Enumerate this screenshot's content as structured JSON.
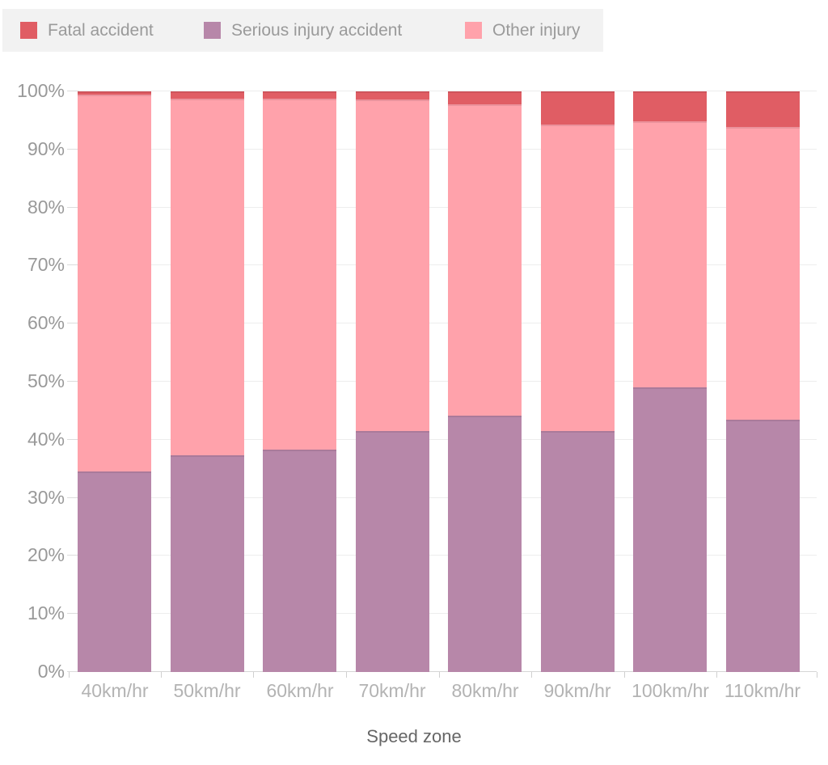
{
  "chart_data": {
    "type": "bar",
    "stacked": true,
    "percent": true,
    "title": "",
    "xlabel": "Speed zone",
    "ylabel": "",
    "ylim": [
      0,
      100
    ],
    "grid": true,
    "legend_position": "top-left",
    "categories": [
      "40km/hr",
      "50km/hr",
      "60km/hr",
      "70km/hr",
      "80km/hr",
      "90km/hr",
      "100km/hr",
      "110km/hr"
    ],
    "y_ticks": [
      "0%",
      "10%",
      "20%",
      "30%",
      "40%",
      "50%",
      "60%",
      "70%",
      "80%",
      "90%",
      "100%"
    ],
    "series": [
      {
        "name": "Serious injury accident",
        "color": "#b787a9",
        "values": [
          34.6,
          37.3,
          38.3,
          41.5,
          44.2,
          41.5,
          49.0,
          43.5
        ]
      },
      {
        "name": "Other injury",
        "color": "#ffa2ab",
        "values": [
          64.9,
          61.4,
          60.5,
          57.1,
          53.6,
          52.8,
          45.9,
          50.4
        ]
      },
      {
        "name": "Fatal accident",
        "color": "#e05d64",
        "values": [
          0.5,
          1.3,
          1.2,
          1.4,
          2.2,
          5.7,
          5.1,
          6.1
        ]
      }
    ],
    "legend": [
      {
        "label": "Fatal accident",
        "color": "#e05d64"
      },
      {
        "label": "Serious injury accident",
        "color": "#b787a9"
      },
      {
        "label": "Other injury",
        "color": "#ffa2ab"
      }
    ]
  },
  "colors": {
    "legend_background": "#f2f2f2",
    "gridline": "#ededed",
    "axis_line": "#d6d6d6",
    "y_label_text": "#999999",
    "x_label_text": "#b3b3b3",
    "axis_title_text": "#666666"
  }
}
